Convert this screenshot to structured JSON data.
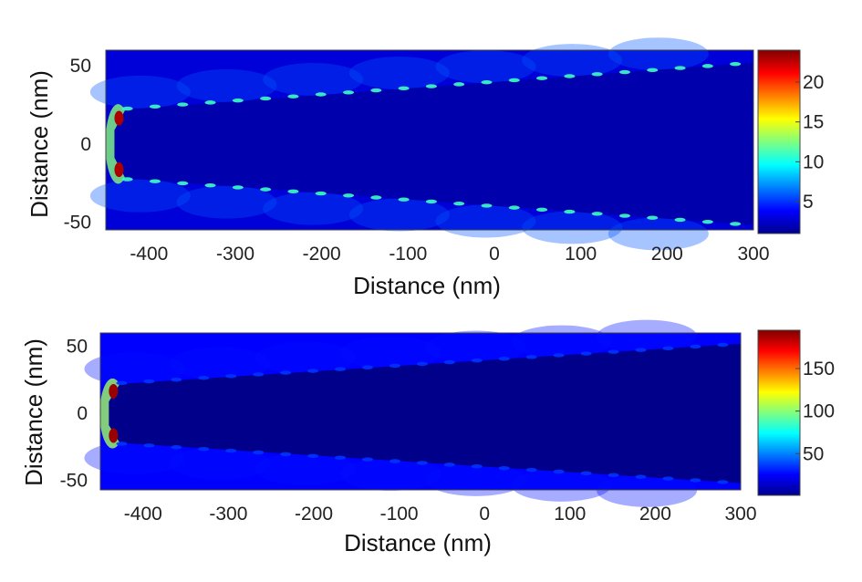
{
  "chart_data": [
    {
      "type": "heatmap",
      "title": "",
      "xlabel": "Distance (nm)",
      "ylabel": "Distance (nm)",
      "xlim": [
        -450,
        300
      ],
      "ylim": [
        -55,
        60
      ],
      "xticks": [
        -400,
        -300,
        -200,
        -100,
        0,
        100,
        200,
        300
      ],
      "yticks": [
        50,
        0,
        -50
      ],
      "colorbar": {
        "range": [
          1,
          24
        ],
        "ticks": [
          20,
          15,
          10,
          5
        ],
        "colormap": "jet"
      },
      "structure": {
        "shape": "tapered tip",
        "tip_x": -440,
        "tip_half_width": 22,
        "base_x": 300,
        "base_half_width": 52
      },
      "field": {
        "background_value": 3,
        "interior_value": 2,
        "surface_hotspot_value": 11,
        "tip_hotspot_value": 23
      }
    },
    {
      "type": "heatmap",
      "title": "",
      "xlabel": "Distance (nm)",
      "ylabel": "Distance (nm)",
      "xlim": [
        -450,
        300
      ],
      "ylim": [
        -57,
        60
      ],
      "xticks": [
        -400,
        -300,
        -200,
        -100,
        0,
        100,
        200,
        300
      ],
      "yticks": [
        50,
        0,
        -50
      ],
      "colorbar": {
        "range": [
          1,
          195
        ],
        "ticks": [
          150,
          100,
          50
        ],
        "colormap": "jet"
      },
      "structure": {
        "shape": "tapered tip",
        "tip_x": -440,
        "tip_half_width": 22,
        "base_x": 300,
        "base_half_width": 52
      },
      "field": {
        "background_value": 25,
        "interior_value": 3,
        "surface_hotspot_value": 35,
        "tip_hotspot_value": 190
      }
    }
  ]
}
